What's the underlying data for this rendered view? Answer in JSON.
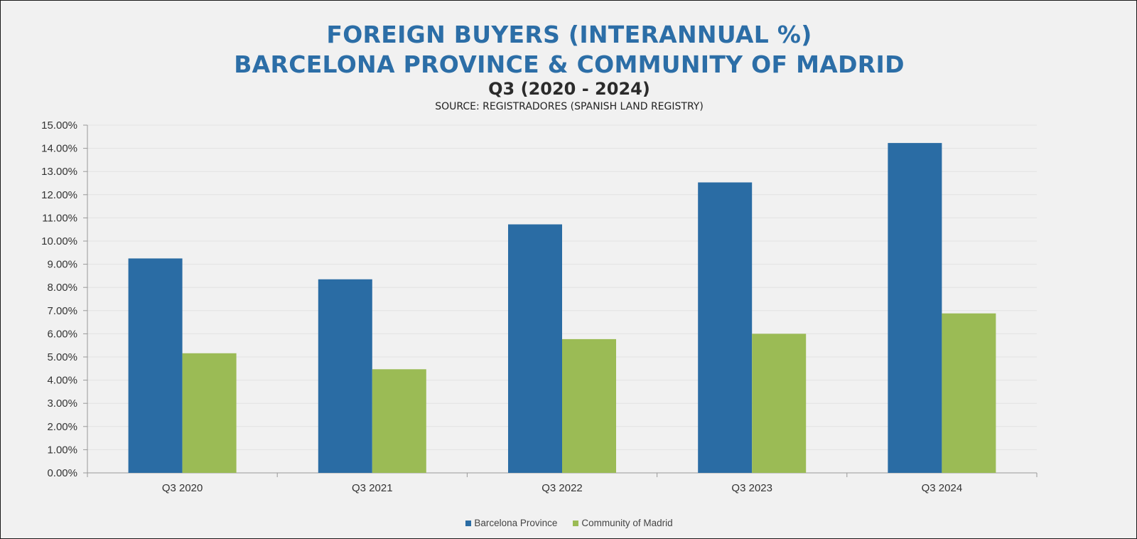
{
  "chart_data": {
    "type": "bar",
    "title": "FOREIGN BUYERS (INTERANNUAL %)",
    "title_line2": "BARCELONA PROVINCE & COMMUNITY OF MADRID",
    "subtitle": "Q3 (2020 - 2024)",
    "source": "SOURCE: REGISTRADORES (SPANISH LAND REGISTRY)",
    "categories": [
      "Q3 2020",
      "Q3 2021",
      "Q3 2022",
      "Q3 2023",
      "Q3 2024"
    ],
    "series": [
      {
        "name": "Barcelona Province",
        "color": "#2a6ca4",
        "values": [
          9.25,
          8.35,
          10.72,
          12.53,
          14.23
        ]
      },
      {
        "name": "Community of Madrid",
        "color": "#9bbb55",
        "values": [
          5.16,
          4.47,
          5.77,
          6.0,
          6.88
        ]
      }
    ],
    "ylim": [
      0,
      15
    ],
    "y_tick_step": 1,
    "y_tick_format": "percent_2dp",
    "grid": true,
    "legend_position": "bottom"
  }
}
